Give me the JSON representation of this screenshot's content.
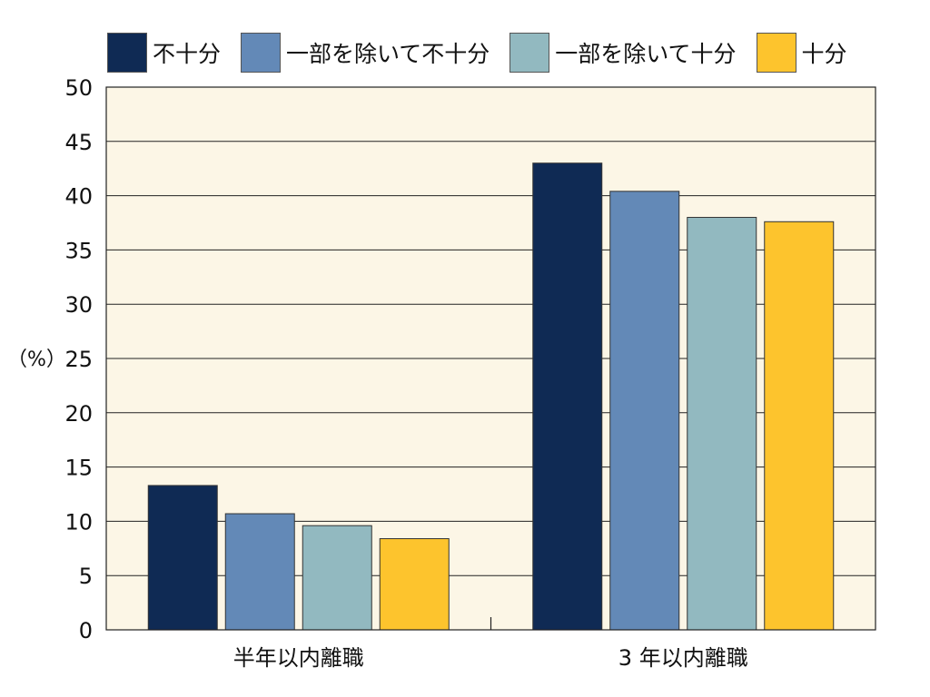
{
  "chart_data": {
    "type": "bar",
    "title": "",
    "xlabel": "",
    "ylabel": "（%）",
    "ylim": [
      0,
      50
    ],
    "yticks": [
      0,
      5,
      10,
      15,
      20,
      25,
      30,
      35,
      40,
      45,
      50
    ],
    "categories": [
      "半年以内離職",
      "3 年以内離職"
    ],
    "series": [
      {
        "name": "不十分",
        "color": "#0f2a54",
        "values": [
          13.3,
          43.0
        ]
      },
      {
        "name": "一部を除いて不十分",
        "color": "#6389b7",
        "values": [
          10.7,
          40.4
        ]
      },
      {
        "name": "一部を除いて十分",
        "color": "#92b9c0",
        "values": [
          9.6,
          38.0
        ]
      },
      {
        "name": "十分",
        "color": "#fdc42d",
        "values": [
          8.4,
          37.6
        ]
      }
    ],
    "grid": true,
    "legend_position": "top",
    "plot_background": "#fcf6e6"
  }
}
